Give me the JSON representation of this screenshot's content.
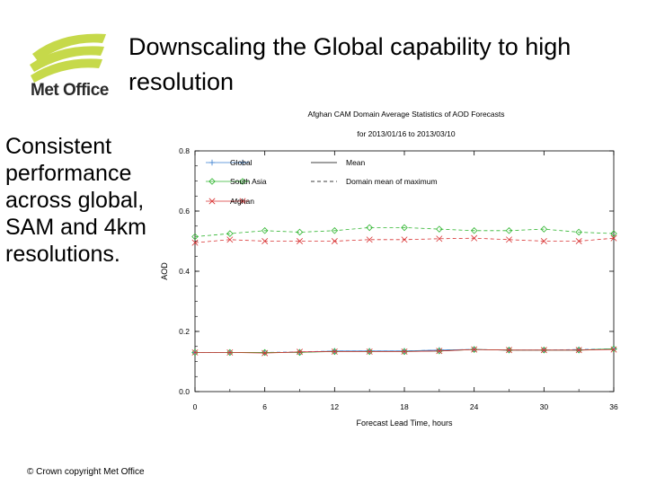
{
  "slide": {
    "title": "Downscaling the Global capability to high resolution",
    "side_text": "Consistent performance across global, SAM and 4km resolutions.",
    "copyright": "© Crown copyright   Met Office",
    "logo": {
      "text": "Met Office",
      "color": "#c6d94a"
    }
  },
  "chart_data": {
    "type": "line",
    "title": "Afghan CAM Domain Average Statistics of AOD Forecasts",
    "subtitle": "for 2013/01/16 to 2013/03/10",
    "xlabel": "Forecast Lead Time, hours",
    "ylabel": "AOD",
    "xlim": [
      0,
      36
    ],
    "ylim": [
      0.0,
      0.8
    ],
    "xticks": [
      "0",
      "6",
      "12",
      "18",
      "24",
      "30",
      "36"
    ],
    "yticks": [
      "0.0",
      "0.2",
      "0.4",
      "0.6",
      "0.8"
    ],
    "x": [
      0,
      3,
      6,
      9,
      12,
      15,
      18,
      21,
      24,
      27,
      30,
      33,
      36
    ],
    "legend": {
      "placement": "top-left",
      "series_entries": [
        "Global",
        "South Asia",
        "Afghan"
      ],
      "linestyle_entries": [
        "Mean",
        "Domain mean of maximum"
      ]
    },
    "series": [
      {
        "name": "Global",
        "color": "#3a7fd0",
        "marker": "plus",
        "mean": [
          0.13,
          0.13,
          0.13,
          0.13,
          0.135,
          0.135,
          0.135,
          0.138,
          0.14,
          0.138,
          0.138,
          0.138,
          0.142
        ],
        "max": [
          0.13,
          0.13,
          0.13,
          0.132,
          0.135,
          0.135,
          0.135,
          0.138,
          0.14,
          0.138,
          0.138,
          0.14,
          0.142
        ]
      },
      {
        "name": "South Asia",
        "color": "#2fb52f",
        "marker": "diamond",
        "mean": [
          0.13,
          0.13,
          0.13,
          0.13,
          0.133,
          0.133,
          0.133,
          0.135,
          0.14,
          0.138,
          0.138,
          0.138,
          0.142
        ],
        "max": [
          0.515,
          0.525,
          0.535,
          0.53,
          0.535,
          0.545,
          0.545,
          0.54,
          0.535,
          0.535,
          0.54,
          0.53,
          0.525
        ]
      },
      {
        "name": "Afghan",
        "color": "#d83030",
        "marker": "x",
        "mean": [
          0.13,
          0.13,
          0.128,
          0.132,
          0.133,
          0.133,
          0.133,
          0.135,
          0.14,
          0.138,
          0.138,
          0.138,
          0.14
        ],
        "max": [
          0.495,
          0.505,
          0.5,
          0.5,
          0.5,
          0.505,
          0.505,
          0.508,
          0.51,
          0.505,
          0.5,
          0.5,
          0.51
        ]
      }
    ]
  }
}
